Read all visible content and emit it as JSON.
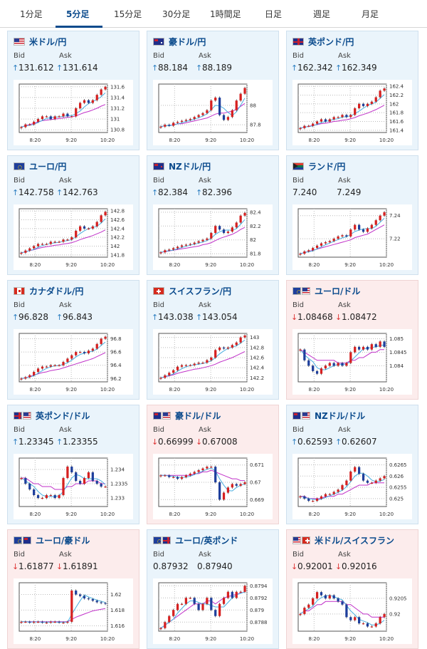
{
  "tabs": [
    {
      "label": "1分足",
      "active": false
    },
    {
      "label": "5分足",
      "active": true
    },
    {
      "label": "15分足",
      "active": false
    },
    {
      "label": "30分足",
      "active": false
    },
    {
      "label": "1時間足",
      "active": false
    },
    {
      "label": "日足",
      "active": false
    },
    {
      "label": "週足",
      "active": false
    },
    {
      "label": "月足",
      "active": false
    }
  ],
  "labels": {
    "bid": "Bid",
    "ask": "Ask"
  },
  "colors": {
    "up": "#2d7fc1",
    "down": "#dd3333",
    "candle_up": "#d62020",
    "candle_down": "#1e3f9c",
    "ma1": "#4aaee0",
    "ma2": "#c030c8"
  },
  "cards": [
    {
      "pair": "米ドル/円",
      "flag": "us",
      "direction": "up",
      "bid": "131.612",
      "ask": "131.614",
      "chart_data": {
        "type": "candlestick",
        "x_ticks": [
          "8:20",
          "9:20",
          "10:20"
        ],
        "y_ticks": [
          "131.6",
          "131.4",
          "131.2",
          "131",
          "130.8"
        ],
        "ylim": [
          130.75,
          131.65
        ],
        "trend": [
          130.85,
          130.9,
          130.9,
          130.95,
          131.0,
          131.05,
          131.05,
          131.0,
          131.05,
          131.05,
          131.1,
          131.05,
          131.05,
          131.2,
          131.3,
          131.35,
          131.3,
          131.35,
          131.45,
          131.55,
          131.6
        ],
        "ma_long": [
          130.85,
          130.88,
          130.9,
          130.92,
          130.95,
          130.97,
          130.98,
          130.99,
          131.0,
          131.01,
          131.02,
          131.03,
          131.04,
          131.06,
          131.09,
          131.12,
          131.14,
          131.17,
          131.2,
          131.24,
          131.27
        ]
      }
    },
    {
      "pair": "豪ドル/円",
      "flag": "au",
      "direction": "up",
      "bid": "88.184",
      "ask": "88.189",
      "chart_data": {
        "type": "candlestick",
        "x_ticks": [
          "8:20",
          "9:20",
          "10:20"
        ],
        "y_ticks": [
          "88",
          "87.8"
        ],
        "ylim": [
          87.72,
          88.22
        ],
        "trend": [
          87.78,
          87.8,
          87.79,
          87.82,
          87.83,
          87.84,
          87.85,
          87.86,
          87.88,
          87.9,
          87.92,
          87.95,
          88.05,
          88.08,
          87.9,
          87.85,
          87.88,
          87.95,
          88.05,
          88.12,
          88.18
        ],
        "ma_long": [
          87.78,
          87.79,
          87.79,
          87.8,
          87.81,
          87.81,
          87.82,
          87.83,
          87.84,
          87.85,
          87.86,
          87.87,
          87.89,
          87.91,
          87.92,
          87.92,
          87.93,
          87.94,
          87.96,
          87.99,
          88.02
        ]
      }
    },
    {
      "pair": "英ポンド/円",
      "flag": "gb",
      "direction": "up",
      "bid": "162.342",
      "ask": "162.349",
      "chart_data": {
        "type": "candlestick",
        "x_ticks": [
          "8:20",
          "9:20",
          "10:20"
        ],
        "y_ticks": [
          "162.4",
          "162.2",
          "162",
          "161.8",
          "161.6",
          "161.4"
        ],
        "ylim": [
          161.35,
          162.45
        ],
        "trend": [
          161.45,
          161.5,
          161.5,
          161.55,
          161.6,
          161.65,
          161.6,
          161.65,
          161.7,
          161.7,
          161.75,
          161.7,
          161.75,
          161.9,
          162.0,
          161.95,
          162.0,
          162.05,
          162.15,
          162.3,
          162.35
        ],
        "ma_long": [
          161.45,
          161.47,
          161.49,
          161.51,
          161.53,
          161.55,
          161.56,
          161.58,
          161.6,
          161.61,
          161.63,
          161.64,
          161.66,
          161.69,
          161.73,
          161.76,
          161.79,
          161.83,
          161.87,
          161.92,
          161.97
        ]
      }
    },
    {
      "pair": "ユーロ/円",
      "flag": "eu",
      "direction": "up",
      "bid": "142.758",
      "ask": "142.763",
      "chart_data": {
        "type": "candlestick",
        "x_ticks": [
          "8:20",
          "9:20",
          "10:20"
        ],
        "y_ticks": [
          "142.8",
          "142.6",
          "142.4",
          "142.2",
          "142",
          "141.8"
        ],
        "ylim": [
          141.75,
          142.85
        ],
        "trend": [
          141.85,
          141.9,
          141.95,
          142.0,
          142.05,
          142.05,
          142.05,
          142.1,
          142.1,
          142.1,
          142.15,
          142.15,
          142.2,
          142.35,
          142.45,
          142.4,
          142.4,
          142.45,
          142.55,
          142.7,
          142.78
        ],
        "ma_long": [
          141.85,
          141.87,
          141.9,
          141.92,
          141.95,
          141.97,
          141.99,
          142.0,
          142.02,
          142.03,
          142.05,
          142.06,
          142.08,
          142.11,
          142.15,
          142.18,
          142.21,
          142.24,
          142.28,
          142.32,
          142.37
        ]
      }
    },
    {
      "pair": "NZドル/円",
      "flag": "nz",
      "direction": "up",
      "bid": "82.384",
      "ask": "82.396",
      "chart_data": {
        "type": "candlestick",
        "x_ticks": [
          "8:20",
          "9:20",
          "10:20"
        ],
        "y_ticks": [
          "82.4",
          "82.2",
          "82",
          "81.8"
        ],
        "ylim": [
          81.75,
          82.45
        ],
        "trend": [
          81.82,
          81.85,
          81.86,
          81.88,
          81.9,
          81.92,
          81.93,
          81.94,
          81.96,
          81.98,
          82.0,
          82.02,
          82.1,
          82.2,
          82.15,
          82.1,
          82.12,
          82.18,
          82.25,
          82.35,
          82.39
        ],
        "ma_long": [
          81.82,
          81.83,
          81.84,
          81.85,
          81.86,
          81.87,
          81.88,
          81.89,
          81.9,
          81.91,
          81.93,
          81.94,
          81.96,
          81.99,
          82.02,
          82.04,
          82.06,
          82.08,
          82.11,
          82.15,
          82.18
        ]
      }
    },
    {
      "pair": "ランド/円",
      "flag": "za",
      "direction": "none",
      "bid": "7.240",
      "ask": "7.249",
      "chart_data": {
        "type": "candlestick",
        "x_ticks": [
          "8:20",
          "9:20",
          "10:20"
        ],
        "y_ticks": [
          "7.24",
          "7.22"
        ],
        "ylim": [
          7.204,
          7.246
        ],
        "trend": [
          7.207,
          7.209,
          7.21,
          7.212,
          7.214,
          7.216,
          7.217,
          7.218,
          7.22,
          7.222,
          7.223,
          7.222,
          7.228,
          7.232,
          7.228,
          7.226,
          7.229,
          7.232,
          7.236,
          7.24,
          7.243
        ],
        "ma_long": [
          7.207,
          7.208,
          7.209,
          7.21,
          7.211,
          7.212,
          7.213,
          7.214,
          7.215,
          7.216,
          7.217,
          7.218,
          7.219,
          7.221,
          7.222,
          7.223,
          7.224,
          7.226,
          7.228,
          7.23,
          7.232
        ]
      }
    },
    {
      "pair": "カナダドル/円",
      "flag": "ca",
      "direction": "up",
      "bid": "96.828",
      "ask": "96.843",
      "chart_data": {
        "type": "candlestick",
        "x_ticks": [
          "8:20",
          "9:20",
          "10:20"
        ],
        "y_ticks": [
          "96.8",
          "96.6",
          "96.4",
          "96.2"
        ],
        "ylim": [
          96.15,
          96.88
        ],
        "trend": [
          96.2,
          96.22,
          96.25,
          96.3,
          96.35,
          96.38,
          96.38,
          96.4,
          96.4,
          96.4,
          96.45,
          96.5,
          96.55,
          96.6,
          96.6,
          96.58,
          96.62,
          96.65,
          96.72,
          96.8,
          96.83
        ],
        "ma_long": [
          96.2,
          96.21,
          96.23,
          96.25,
          96.27,
          96.29,
          96.3,
          96.32,
          96.33,
          96.34,
          96.36,
          96.38,
          96.4,
          96.42,
          96.44,
          96.46,
          96.48,
          96.5,
          96.53,
          96.56,
          96.59
        ]
      }
    },
    {
      "pair": "スイスフラン/円",
      "flag": "ch",
      "direction": "up",
      "bid": "143.038",
      "ask": "143.054",
      "chart_data": {
        "type": "candlestick",
        "x_ticks": [
          "8:20",
          "9:20",
          "10:20"
        ],
        "y_ticks": [
          "143",
          "142.8",
          "142.6",
          "142.4",
          "142.2"
        ],
        "ylim": [
          142.12,
          143.08
        ],
        "trend": [
          142.2,
          142.25,
          142.3,
          142.35,
          142.42,
          142.45,
          142.45,
          142.45,
          142.48,
          142.5,
          142.5,
          142.55,
          142.6,
          142.75,
          142.8,
          142.78,
          142.8,
          142.85,
          142.9,
          143.0,
          143.04
        ],
        "ma_long": [
          142.2,
          142.22,
          142.24,
          142.26,
          142.29,
          142.31,
          142.33,
          142.35,
          142.37,
          142.38,
          142.4,
          142.42,
          142.44,
          142.47,
          142.51,
          142.54,
          142.57,
          142.6,
          142.64,
          142.68,
          142.72
        ]
      }
    },
    {
      "pair": "ユーロ/ドル",
      "flag": "eu-us",
      "direction": "down",
      "bid": "1.08468",
      "ask": "1.08472",
      "chart_data": {
        "type": "candlestick",
        "x_ticks": [
          "8:20",
          "9:20",
          "10:20"
        ],
        "y_ticks": [
          "1.085",
          "1.0845",
          "1.084"
        ],
        "ylim": [
          1.0834,
          1.0852
        ],
        "trend": [
          1.0846,
          1.0842,
          1.084,
          1.0838,
          1.0837,
          1.0839,
          1.084,
          1.0841,
          1.084,
          1.0841,
          1.084,
          1.0841,
          1.0845,
          1.0847,
          1.0846,
          1.0847,
          1.0846,
          1.0848,
          1.0847,
          1.0849,
          1.0847
        ],
        "ma_long": [
          1.0846,
          1.0845,
          1.0844,
          1.0843,
          1.0842,
          1.0842,
          1.0842,
          1.0842,
          1.0842,
          1.0841,
          1.0841,
          1.0841,
          1.0842,
          1.0842,
          1.0843,
          1.0843,
          1.0844,
          1.0845,
          1.0845,
          1.0846,
          1.0846
        ]
      }
    },
    {
      "pair": "英ポンド/ドル",
      "flag": "gb-us",
      "direction": "up",
      "bid": "1.23345",
      "ask": "1.23355",
      "chart_data": {
        "type": "candlestick",
        "x_ticks": [
          "8:20",
          "9:20",
          "10:20"
        ],
        "y_ticks": [
          "1.234",
          "1.2335",
          "1.233"
        ],
        "ylim": [
          1.2327,
          1.2344
        ],
        "trend": [
          1.2337,
          1.2335,
          1.2333,
          1.2331,
          1.233,
          1.233,
          1.2331,
          1.2331,
          1.233,
          1.2331,
          1.2337,
          1.2341,
          1.2339,
          1.2336,
          1.2335,
          1.2337,
          1.2339,
          1.2336,
          1.2335,
          1.2334,
          1.2334
        ],
        "ma_long": [
          1.2337,
          1.2337,
          1.2336,
          1.2335,
          1.2335,
          1.2334,
          1.2334,
          1.2334,
          1.2333,
          1.2333,
          1.2333,
          1.2334,
          1.2334,
          1.2335,
          1.2335,
          1.2335,
          1.2336,
          1.2336,
          1.2336,
          1.2335,
          1.2335
        ]
      }
    },
    {
      "pair": "豪ドル/ドル",
      "flag": "au-us",
      "direction": "down",
      "bid": "0.66999",
      "ask": "0.67008",
      "chart_data": {
        "type": "candlestick",
        "x_ticks": [
          "8:20",
          "9:20",
          "10:20"
        ],
        "y_ticks": [
          "0.671",
          "0.67",
          "0.669"
        ],
        "ylim": [
          0.6686,
          0.6714
        ],
        "trend": [
          0.6704,
          0.6704,
          0.6703,
          0.6703,
          0.6702,
          0.6703,
          0.6704,
          0.6705,
          0.6706,
          0.6707,
          0.6708,
          0.6709,
          0.6709,
          0.67,
          0.669,
          0.6694,
          0.6697,
          0.6699,
          0.6698,
          0.6699,
          0.67
        ],
        "ma_long": [
          0.6704,
          0.6704,
          0.6704,
          0.6704,
          0.6704,
          0.6704,
          0.6704,
          0.6704,
          0.6705,
          0.6705,
          0.6706,
          0.6706,
          0.6707,
          0.6706,
          0.6705,
          0.6704,
          0.6703,
          0.6702,
          0.6702,
          0.6701,
          0.6701
        ]
      }
    },
    {
      "pair": "NZドル/ドル",
      "flag": "nz-us",
      "direction": "up",
      "bid": "0.62593",
      "ask": "0.62607",
      "chart_data": {
        "type": "candlestick",
        "x_ticks": [
          "8:20",
          "9:20",
          "10:20"
        ],
        "y_ticks": [
          "0.6265",
          "0.626",
          "0.6255",
          "0.625"
        ],
        "ylim": [
          0.62465,
          0.6268
        ],
        "trend": [
          0.6251,
          0.625,
          0.6249,
          0.6249,
          0.625,
          0.6251,
          0.6252,
          0.6252,
          0.6253,
          0.6254,
          0.6256,
          0.6258,
          0.6262,
          0.6264,
          0.6261,
          0.6258,
          0.6257,
          0.6257,
          0.6258,
          0.6259,
          0.626
        ],
        "ma_long": [
          0.6251,
          0.6251,
          0.625,
          0.625,
          0.625,
          0.625,
          0.6251,
          0.6251,
          0.6251,
          0.6252,
          0.6252,
          0.6253,
          0.6254,
          0.6255,
          0.6256,
          0.6256,
          0.6256,
          0.6257,
          0.6257,
          0.6257,
          0.6257
        ]
      }
    },
    {
      "pair": "ユーロ/豪ドル",
      "flag": "eu-au",
      "direction": "down",
      "bid": "1.61877",
      "ask": "1.61891",
      "chart_data": {
        "type": "candlestick",
        "x_ticks": [
          "8:20",
          "9:20",
          "10:20"
        ],
        "y_ticks": [
          "1.62",
          "1.618",
          "1.616"
        ],
        "ylim": [
          1.6153,
          1.6215
        ],
        "trend": [
          1.6165,
          1.6165,
          1.6164,
          1.6165,
          1.6165,
          1.6164,
          1.6164,
          1.6165,
          1.6165,
          1.6164,
          1.6164,
          1.6165,
          1.6205,
          1.62,
          1.6198,
          1.6195,
          1.6194,
          1.6192,
          1.619,
          1.6189,
          1.6188
        ],
        "ma_long": [
          1.6165,
          1.6165,
          1.6165,
          1.6165,
          1.6165,
          1.6165,
          1.6165,
          1.6165,
          1.6165,
          1.6165,
          1.6165,
          1.6165,
          1.6168,
          1.6171,
          1.6173,
          1.6175,
          1.6177,
          1.6179,
          1.618,
          1.6181,
          1.6182
        ]
      }
    },
    {
      "pair": "ユーロ/英ポンド",
      "flag": "eu-gb",
      "direction": "none",
      "bid": "0.87932",
      "ask": "0.87940",
      "chart_data": {
        "type": "candlestick",
        "x_ticks": [
          "8:20",
          "9:20",
          "10:20"
        ],
        "y_ticks": [
          "0.8794",
          "0.8792",
          "0.879",
          "0.8788"
        ],
        "ylim": [
          0.87865,
          0.87945
        ],
        "trend": [
          0.8787,
          0.8788,
          0.8789,
          0.879,
          0.8791,
          0.8791,
          0.8792,
          0.8792,
          0.8791,
          0.879,
          0.8791,
          0.8792,
          0.879,
          0.8789,
          0.8791,
          0.8792,
          0.8793,
          0.8792,
          0.8793,
          0.8793,
          0.8794
        ],
        "ma_long": [
          0.8787,
          0.87875,
          0.8788,
          0.87885,
          0.8789,
          0.87895,
          0.879,
          0.87905,
          0.8791,
          0.8791,
          0.8791,
          0.87915,
          0.87915,
          0.8791,
          0.87915,
          0.8792,
          0.87922,
          0.87924,
          0.87926,
          0.87928,
          0.8793
        ]
      }
    },
    {
      "pair": "米ドル/スイスフラン",
      "flag": "us-ch",
      "direction": "down",
      "bid": "0.92001",
      "ask": "0.92016",
      "chart_data": {
        "type": "candlestick",
        "x_ticks": [
          "8:20",
          "9:20",
          "10:20"
        ],
        "y_ticks": [
          "0.9205",
          "0.92"
        ],
        "ylim": [
          0.91945,
          0.921
        ],
        "trend": [
          0.92,
          0.9202,
          0.9203,
          0.9205,
          0.9207,
          0.9206,
          0.9205,
          0.9206,
          0.9205,
          0.9204,
          0.9203,
          0.9199,
          0.9198,
          0.9199,
          0.9197,
          0.9197,
          0.9196,
          0.9196,
          0.9197,
          0.9199,
          0.92
        ],
        "ma_long": [
          0.92,
          0.9201,
          0.9201,
          0.9202,
          0.9203,
          0.9203,
          0.9204,
          0.9204,
          0.9204,
          0.9204,
          0.9204,
          0.9203,
          0.9203,
          0.9202,
          0.9201,
          0.92,
          0.92,
          0.9199,
          0.9199,
          0.9199,
          0.9199
        ]
      }
    }
  ]
}
